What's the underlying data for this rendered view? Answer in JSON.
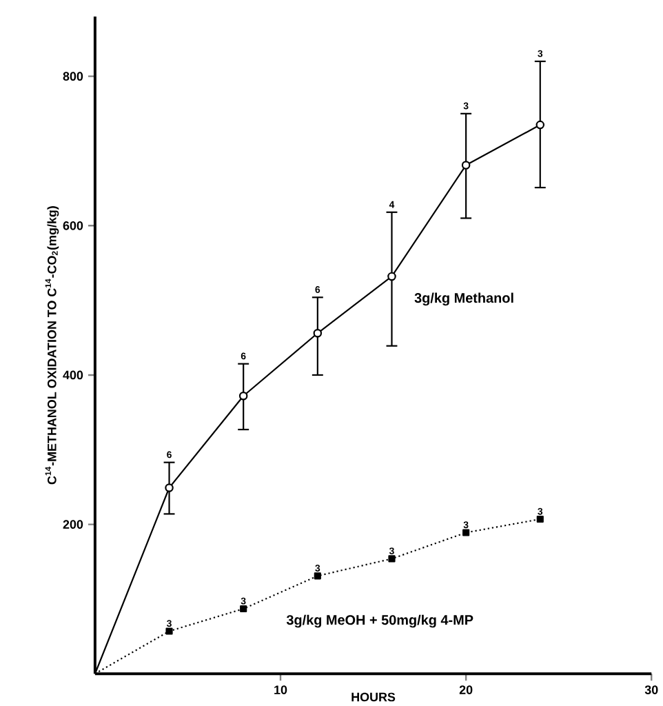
{
  "chart_data": {
    "type": "line",
    "xlabel": "HOURS",
    "ylabel": "C$^{14}$-METHANOL OXIDATION TO C$^{14}$-CO$_{2}$(mg/kg)",
    "xlim": [
      0,
      30
    ],
    "ylim": [
      0,
      880
    ],
    "xticks": [
      10,
      20,
      30
    ],
    "yticks": [
      200,
      400,
      600,
      800
    ],
    "series": [
      {
        "name": "3g/kg Methanol",
        "color": "#000000",
        "marker": "circle",
        "line_style": "solid",
        "x": [
          0,
          4,
          8,
          12,
          16,
          20,
          24
        ],
        "values": [
          0,
          249,
          372,
          456,
          532,
          681,
          735
        ],
        "errors": [
          null,
          [
            214,
            283
          ],
          [
            327,
            415
          ],
          [
            400,
            504
          ],
          [
            439,
            618
          ],
          [
            610,
            750
          ],
          [
            651,
            820
          ]
        ]
      },
      {
        "name": "3g/kg MeOH + 50mg/kg 4-MP",
        "color": "#000000",
        "marker": "square",
        "line_style": "dotted",
        "x": [
          0,
          4,
          8,
          12,
          16,
          20,
          24
        ],
        "values": [
          0,
          57,
          87,
          131,
          154,
          189,
          207
        ]
      }
    ],
    "annotations": [
      {
        "text": "6",
        "x": 4,
        "y": 283
      },
      {
        "text": "6",
        "x": 8,
        "y": 415
      },
      {
        "text": "6",
        "x": 12,
        "y": 504
      },
      {
        "text": "4",
        "x": 16,
        "y": 618
      },
      {
        "text": "3",
        "x": 20,
        "y": 750
      },
      {
        "text": "3",
        "x": 24,
        "y": 820
      },
      {
        "text": "3",
        "x": 4,
        "y": 57
      },
      {
        "text": "3",
        "x": 8,
        "y": 87
      },
      {
        "text": "3",
        "x": 12,
        "y": 131
      },
      {
        "text": "3",
        "x": 16,
        "y": 154
      },
      {
        "text": "3",
        "x": 20,
        "y": 189
      },
      {
        "text": "3",
        "x": 24,
        "y": 207
      }
    ]
  }
}
